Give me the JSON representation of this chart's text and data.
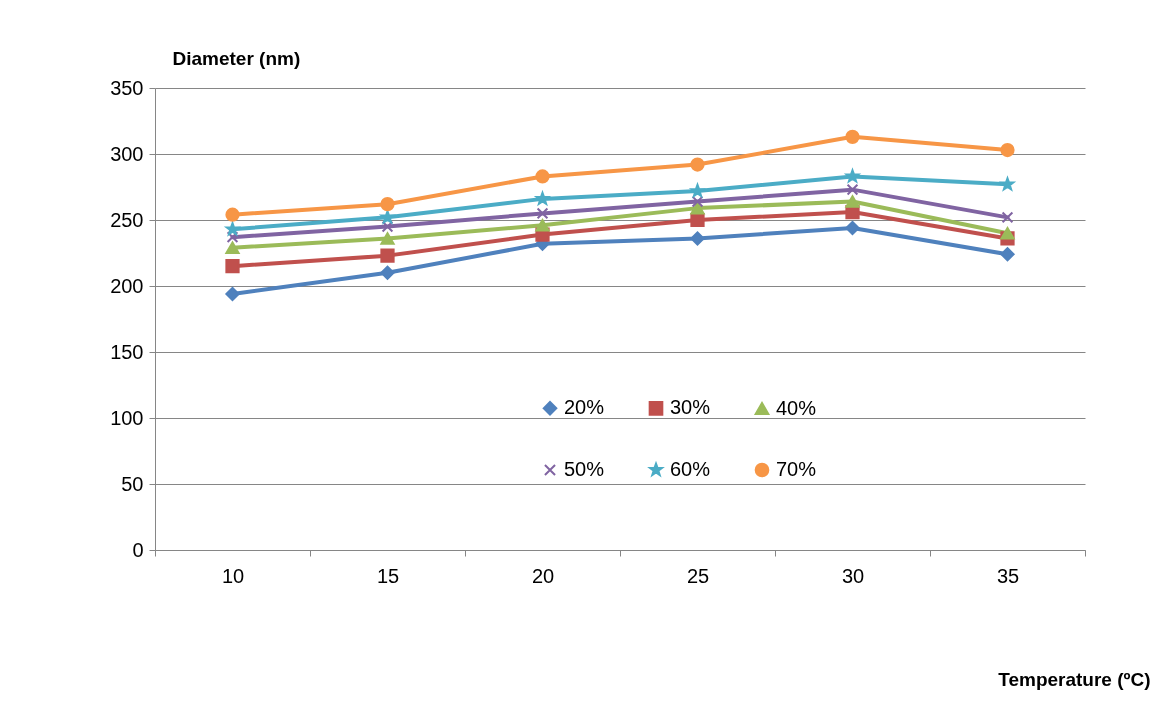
{
  "chart_data": {
    "type": "line",
    "xlabel": "Temperature (ºC)",
    "ylabel": "Diameter (nm)",
    "categories": [
      "10",
      "15",
      "20",
      "25",
      "30",
      "35"
    ],
    "ylim": [
      0,
      350
    ],
    "yticks": [
      0,
      50,
      100,
      150,
      200,
      250,
      300,
      350
    ],
    "grid": "y",
    "legend": "bottom right",
    "series": [
      {
        "name": "20%",
        "color": "#4f81bd",
        "marker": "diamond",
        "values": [
          194,
          210,
          232,
          236,
          244,
          224
        ]
      },
      {
        "name": "30%",
        "color": "#c0504d",
        "marker": "square",
        "values": [
          215,
          223,
          239,
          250,
          256,
          236
        ]
      },
      {
        "name": "40%",
        "color": "#9bbb59",
        "marker": "triangle",
        "values": [
          229,
          236,
          246,
          259,
          264,
          240
        ]
      },
      {
        "name": "50%",
        "color": "#8064a2",
        "marker": "cross",
        "values": [
          237,
          245,
          255,
          264,
          273,
          252
        ]
      },
      {
        "name": "60%",
        "color": "#4bacc6",
        "marker": "star",
        "values": [
          243,
          252,
          266,
          272,
          283,
          277
        ]
      },
      {
        "name": "70%",
        "color": "#f79646",
        "marker": "circle",
        "values": [
          254,
          262,
          283,
          292,
          313,
          303
        ]
      }
    ]
  }
}
